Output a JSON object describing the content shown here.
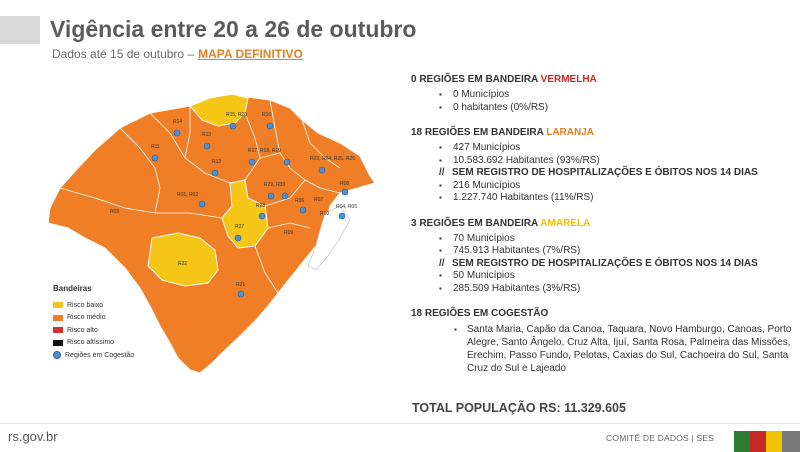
{
  "header": {
    "title": "Vigência entre 20 a 26 de outubro",
    "subtitle": "Dados até 15 de outubro –",
    "subtitle_link": "MAPA DEFINITIVO"
  },
  "map": {
    "labels": [
      "R15, R20",
      "R16",
      "R14",
      "R13",
      "R11",
      "R12",
      "R17, R18, R19",
      "R23, R24, R25, R26",
      "R29, R30",
      "R28",
      "R01, R02",
      "R03",
      "R07",
      "R06",
      "R08",
      "R10",
      "R04, R05",
      "R27",
      "R09",
      "R22",
      "R21"
    ],
    "legend": {
      "title": "Bandeiras",
      "items": [
        {
          "label": "Risco baixo",
          "color": "#f5c518"
        },
        {
          "label": "Risco médio",
          "color": "#f07e26"
        },
        {
          "label": "Risco alto",
          "color": "#d32f2f"
        },
        {
          "label": "Risco altíssimo",
          "color": "#111111"
        },
        {
          "label": "Regiões em Cogestão",
          "icon": "cogestao-icon"
        }
      ]
    }
  },
  "info": {
    "red": {
      "prefix": "0 REGIÕES EM BANDEIRA",
      "flag": "VERMELHA",
      "items": [
        "0 Municípios",
        "0 habitantes (0%/RS)"
      ]
    },
    "orange": {
      "prefix": "18 REGIÕES EM BANDEIRA",
      "flag": "LARANJA",
      "items": [
        "427 Municípios",
        "10.583.692 Habitantes (93%/RS)"
      ],
      "sub": "SEM REGISTRO DE HOSPITALIZAÇÕES E ÓBITOS NOS 14 DIAS",
      "sub_items": [
        "216 Municípios",
        "1.227.740  Habitantes (11%/RS)"
      ]
    },
    "yellow": {
      "prefix": "3 REGIÕES EM BANDEIRA",
      "flag": "AMARELA",
      "items": [
        "70 Municípios",
        "745.913 Habitantes (7%/RS)"
      ],
      "sub": "SEM REGISTRO DE HOSPITALIZAÇÕES E ÓBITOS NOS 14 DIAS",
      "sub_items": [
        "50 Municípios",
        "285.509 Habitantes (3%/RS)"
      ]
    },
    "cogestao": {
      "title": "18 REGIÕES EM COGESTÃO",
      "cities": "Santa Maria, Capão da Canoa, Taquara, Novo Hamburgo, Canoas, Porto Alegre, Santo Ângelo, Cruz Alta, Ijuí, Santa Rosa, Palmeira das Missões, Erechim, Passo Fundo, Pelotas, Caxias do Sul, Cachoeira do Sul, Santa Cruz do Sul e Lajeado"
    },
    "total": "TOTAL POPULAÇÃO RS: 11.329.605"
  },
  "footer": {
    "url": "rs.gov.br",
    "brand": "COMITÊ DE DADOS | SES"
  },
  "colors": {
    "orange": "#f07e26",
    "yellow": "#f5c518",
    "flag_green": "#2e7d32",
    "flag_red": "#c62828",
    "flag_yellow": "#f2c200",
    "flag_gray": "#7a7a7a"
  }
}
